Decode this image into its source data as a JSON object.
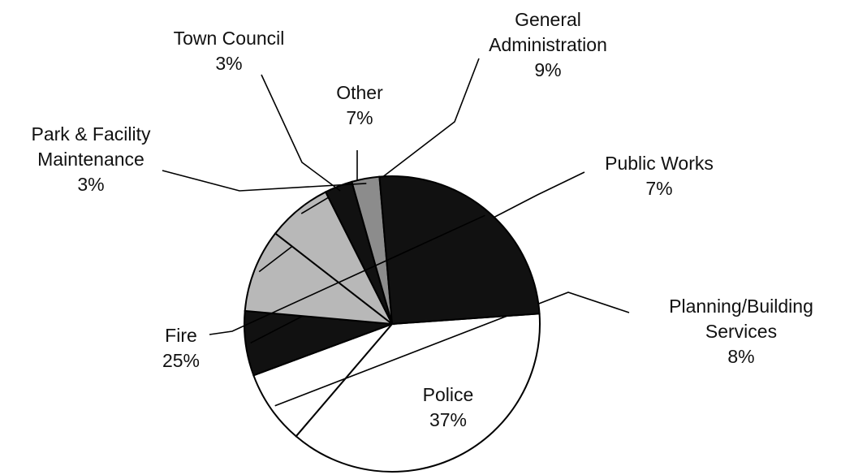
{
  "chart_data": {
    "type": "pie",
    "title": "",
    "slices": [
      {
        "label_lines": [
          "Police"
        ],
        "value": 37,
        "value_label": "37%",
        "fill": "#ffffff"
      },
      {
        "label_lines": [
          "Planning/Building",
          "Services"
        ],
        "value": 8,
        "value_label": "8%",
        "fill": "#ffffff"
      },
      {
        "label_lines": [
          "Public Works"
        ],
        "value": 7,
        "value_label": "7%",
        "fill": "#111111"
      },
      {
        "label_lines": [
          "General",
          "Administration"
        ],
        "value": 9,
        "value_label": "9%",
        "fill": "#b8b8b8"
      },
      {
        "label_lines": [
          "Other"
        ],
        "value": 7,
        "value_label": "7%",
        "fill": "#b8b8b8"
      },
      {
        "label_lines": [
          "Town Council"
        ],
        "value": 3,
        "value_label": "3%",
        "fill": "#111111"
      },
      {
        "label_lines": [
          "Park & Facility",
          "Maintenance"
        ],
        "value": 3,
        "value_label": "3%",
        "fill": "#8c8c8c"
      },
      {
        "label_lines": [
          "Fire"
        ],
        "value": 25,
        "value_label": "25%",
        "fill": "#111111"
      }
    ]
  }
}
